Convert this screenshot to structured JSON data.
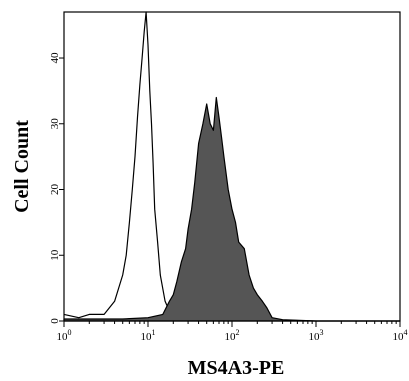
{
  "chart_data": {
    "type": "area",
    "title": "",
    "xlabel": "MS4A3-PE",
    "ylabel": "Cell Count",
    "xscale": "log",
    "xlim": [
      1,
      10000
    ],
    "ylim": [
      0,
      47
    ],
    "x_ticks": [
      {
        "value": 1,
        "base": "10",
        "exp": "0"
      },
      {
        "value": 10,
        "base": "10",
        "exp": "1"
      },
      {
        "value": 100,
        "base": "10",
        "exp": "2"
      },
      {
        "value": 1000,
        "base": "10",
        "exp": "3"
      },
      {
        "value": 10000,
        "base": "10",
        "exp": "4"
      }
    ],
    "y_ticks": [
      0,
      10,
      20,
      30,
      40
    ],
    "grid": false,
    "series": [
      {
        "style": "unfilled outline",
        "color": "#000000",
        "x": [
          1,
          1.5,
          2,
          3,
          4,
          5,
          5.5,
          6,
          6.5,
          7,
          7.5,
          8,
          8.5,
          9,
          9.5,
          10,
          10.5,
          11,
          11.5,
          12,
          13,
          14,
          16,
          18,
          20,
          25,
          30,
          40,
          60,
          100,
          200,
          1000,
          10000
        ],
        "y": [
          1,
          0.5,
          1,
          1,
          3,
          7,
          10,
          15,
          20,
          25,
          31,
          36,
          40,
          44,
          47,
          42,
          35,
          30,
          24,
          17,
          12,
          7,
          3,
          1.5,
          1,
          0.5,
          1,
          0.5,
          0.5,
          0.3,
          0.2,
          0,
          0
        ]
      },
      {
        "style": "filled",
        "color": "#555555",
        "x": [
          1,
          5,
          10,
          15,
          18,
          20,
          22,
          25,
          28,
          30,
          33,
          36,
          40,
          45,
          50,
          55,
          60,
          65,
          70,
          75,
          80,
          90,
          100,
          110,
          120,
          140,
          160,
          180,
          200,
          230,
          260,
          300,
          400,
          1000,
          10000
        ],
        "y": [
          0.3,
          0.3,
          0.5,
          1,
          3,
          4,
          6,
          9,
          11,
          14,
          17,
          21,
          27,
          30,
          33,
          30,
          29,
          34,
          31,
          28,
          25,
          20,
          17,
          15,
          12,
          11,
          7,
          5,
          4,
          3,
          2,
          0.5,
          0.2,
          0,
          0
        ]
      }
    ]
  }
}
